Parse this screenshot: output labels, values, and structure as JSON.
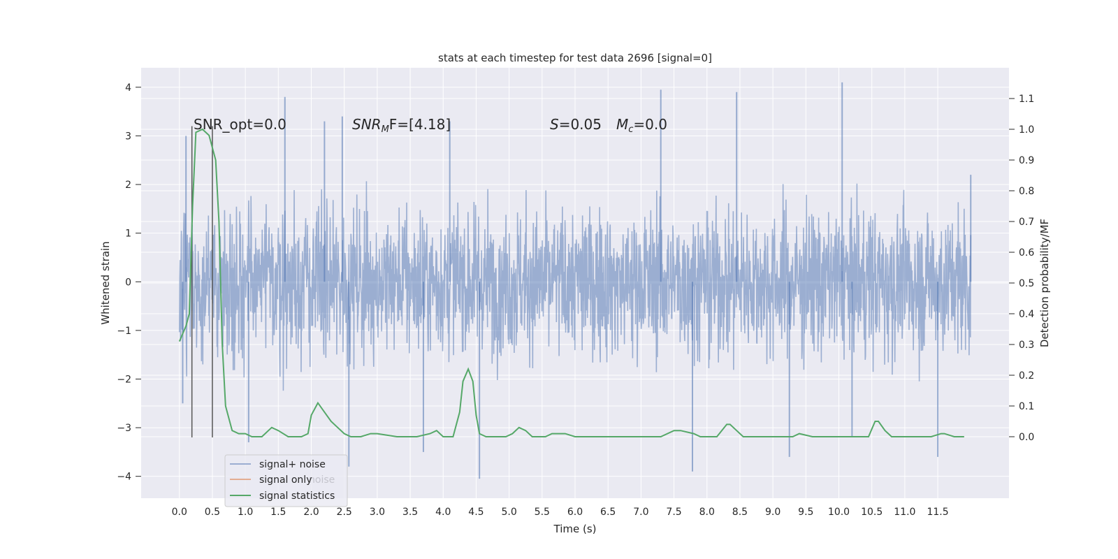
{
  "chart_data": {
    "type": "line",
    "title": "stats at each timestep for test data 2696 [signal=0]",
    "xlabel": "Time (s)",
    "ylabel": "Whitened strain",
    "ylabel_right": "Detection probability/MF",
    "xlim": [
      -0.58,
      12.58
    ],
    "ylim": [
      -4.45,
      4.4
    ],
    "ylim_right": [
      -0.2,
      1.2
    ],
    "x_ticks": [
      "0.0",
      "0.5",
      "1.0",
      "1.5",
      "2.0",
      "2.5",
      "3.0",
      "3.5",
      "4.0",
      "4.5",
      "5.0",
      "5.5",
      "6.0",
      "6.5",
      "7.0",
      "7.5",
      "8.0",
      "8.5",
      "9.0",
      "9.5",
      "10.0",
      "10.5",
      "11.0",
      "11.5"
    ],
    "y_ticks_left": [
      "4",
      "3",
      "2",
      "1",
      "0",
      "−1",
      "−2",
      "−3",
      "−4"
    ],
    "y_ticks_right": [
      "1.1",
      "1.0",
      "0.9",
      "0.8",
      "0.7",
      "0.6",
      "0.5",
      "0.4",
      "0.3",
      "0.2",
      "0.1",
      "0.0"
    ],
    "grid": true,
    "annotations": {
      "snr_opt": "SNR_opt=0.0",
      "snr_mf_main": "SNR",
      "snr_mf_sub": "M",
      "snr_mf_rest": "F=[4.18]",
      "s_main": "S",
      "s_rest": "=0.05",
      "mc_main": "M",
      "mc_sub": "c",
      "mc_rest": "=0.0"
    },
    "vlines_x": [
      0.19,
      0.5
    ],
    "vlines_range": [
      -3.2,
      3.2
    ],
    "series": [
      {
        "name": "signal+ noise",
        "color": "#4c72b0",
        "kind": "noise",
        "x_range": [
          0.0,
          12.0
        ],
        "envelope_note": "dense noise roughly within [-2.2, 2.2] with spikes",
        "spikes": [
          [
            1.6,
            3.8
          ],
          [
            7.3,
            3.95
          ],
          [
            8.45,
            3.9
          ],
          [
            10.05,
            4.1
          ],
          [
            0.1,
            3.0
          ],
          [
            2.2,
            3.3
          ],
          [
            2.47,
            3.4
          ],
          [
            4.1,
            3.3
          ],
          [
            12.0,
            2.2
          ],
          [
            2.57,
            -3.8
          ],
          [
            4.55,
            -4.05
          ],
          [
            3.7,
            -3.5
          ],
          [
            7.78,
            -3.9
          ],
          [
            11.5,
            -3.6
          ],
          [
            9.25,
            -3.6
          ],
          [
            0.05,
            -2.5
          ],
          [
            1.05,
            -3.3
          ],
          [
            10.2,
            -3.2
          ]
        ]
      },
      {
        "name": "signal only",
        "color": "#dd8452",
        "kind": "line",
        "points": []
      },
      {
        "name": "signal statistics",
        "color": "#55a868",
        "kind": "line",
        "axis": "right",
        "points": [
          [
            0.0,
            0.31
          ],
          [
            0.1,
            0.36
          ],
          [
            0.15,
            0.4
          ],
          [
            0.2,
            0.75
          ],
          [
            0.25,
            0.99
          ],
          [
            0.35,
            1.0
          ],
          [
            0.45,
            0.98
          ],
          [
            0.55,
            0.9
          ],
          [
            0.6,
            0.7
          ],
          [
            0.65,
            0.3
          ],
          [
            0.7,
            0.1
          ],
          [
            0.75,
            0.06
          ],
          [
            0.8,
            0.02
          ],
          [
            0.9,
            0.01
          ],
          [
            1.0,
            0.01
          ],
          [
            1.1,
            0.0
          ],
          [
            1.25,
            0.0
          ],
          [
            1.35,
            0.02
          ],
          [
            1.4,
            0.03
          ],
          [
            1.5,
            0.02
          ],
          [
            1.65,
            0.0
          ],
          [
            1.85,
            0.0
          ],
          [
            1.95,
            0.01
          ],
          [
            2.0,
            0.07
          ],
          [
            2.1,
            0.11
          ],
          [
            2.2,
            0.08
          ],
          [
            2.3,
            0.05
          ],
          [
            2.4,
            0.03
          ],
          [
            2.5,
            0.01
          ],
          [
            2.6,
            0.0
          ],
          [
            2.75,
            0.0
          ],
          [
            2.9,
            0.01
          ],
          [
            3.0,
            0.01
          ],
          [
            3.3,
            0.0
          ],
          [
            3.6,
            0.0
          ],
          [
            3.8,
            0.01
          ],
          [
            3.9,
            0.02
          ],
          [
            4.0,
            0.0
          ],
          [
            4.15,
            0.0
          ],
          [
            4.25,
            0.08
          ],
          [
            4.3,
            0.18
          ],
          [
            4.38,
            0.22
          ],
          [
            4.45,
            0.18
          ],
          [
            4.5,
            0.07
          ],
          [
            4.55,
            0.01
          ],
          [
            4.65,
            0.0
          ],
          [
            4.95,
            0.0
          ],
          [
            5.05,
            0.01
          ],
          [
            5.15,
            0.03
          ],
          [
            5.25,
            0.02
          ],
          [
            5.35,
            0.0
          ],
          [
            5.55,
            0.0
          ],
          [
            5.65,
            0.01
          ],
          [
            5.85,
            0.01
          ],
          [
            6.0,
            0.0
          ],
          [
            6.2,
            0.0
          ],
          [
            6.4,
            0.0
          ],
          [
            6.6,
            0.0
          ],
          [
            6.8,
            0.0
          ],
          [
            7.0,
            0.0
          ],
          [
            7.3,
            0.0
          ],
          [
            7.5,
            0.02
          ],
          [
            7.6,
            0.02
          ],
          [
            7.8,
            0.01
          ],
          [
            7.9,
            0.0
          ],
          [
            8.15,
            0.0
          ],
          [
            8.3,
            0.04
          ],
          [
            8.35,
            0.04
          ],
          [
            8.45,
            0.02
          ],
          [
            8.55,
            0.0
          ],
          [
            9.0,
            0.0
          ],
          [
            9.3,
            0.0
          ],
          [
            9.4,
            0.01
          ],
          [
            9.6,
            0.0
          ],
          [
            9.8,
            0.0
          ],
          [
            10.0,
            0.0
          ],
          [
            10.2,
            0.0
          ],
          [
            10.45,
            0.0
          ],
          [
            10.55,
            0.05
          ],
          [
            10.6,
            0.05
          ],
          [
            10.7,
            0.02
          ],
          [
            10.8,
            0.0
          ],
          [
            11.0,
            0.0
          ],
          [
            11.4,
            0.0
          ],
          [
            11.55,
            0.01
          ],
          [
            11.6,
            0.01
          ],
          [
            11.75,
            0.0
          ],
          [
            11.9,
            0.0
          ]
        ]
      }
    ],
    "legend": {
      "placement": "lower-left",
      "entries": [
        "signal+ noise",
        "signal only",
        "signal statistics"
      ],
      "ghost_text": "noise"
    }
  }
}
